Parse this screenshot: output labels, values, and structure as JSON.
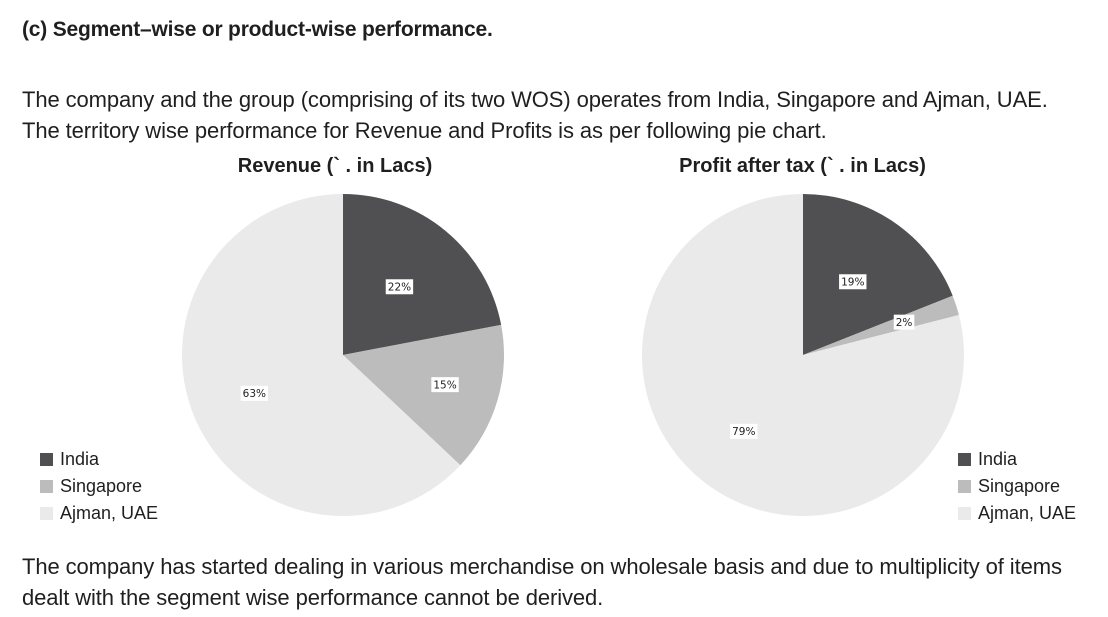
{
  "heading": "(c) Segment–wise or product-wise performance.",
  "intro": "The company and the group (comprising of its two WOS) operates from India, Singapore and Ajman, UAE. The territory wise performance for Revenue and Profits is as per following pie chart.",
  "closing": "The company has started dealing in various merchandise on wholesale basis and due to multiplicity of items dealt with the segment wise performance cannot be derived.",
  "colors": {
    "India": "#505052",
    "Singapore": "#bcbcbc",
    "Ajman, UAE": "#eaeaea"
  },
  "chart_data": [
    {
      "type": "pie",
      "title": "Revenue (` . in Lacs)",
      "categories": [
        "India",
        "Singapore",
        "Ajman, UAE"
      ],
      "values": [
        22,
        15,
        63
      ],
      "labels": [
        "22%",
        "15%",
        "63%"
      ],
      "legend": [
        "India",
        "Singapore",
        "Ajman, UAE"
      ],
      "legend_position": "bottom-left"
    },
    {
      "type": "pie",
      "title": "Profit after tax (` . in Lacs)",
      "categories": [
        "India",
        "Singapore",
        "Ajman, UAE"
      ],
      "values": [
        19,
        2,
        79
      ],
      "labels": [
        "19%",
        "2%",
        "79%"
      ],
      "legend": [
        "India",
        "Singapore",
        "Ajman, UAE"
      ],
      "legend_position": "bottom-right"
    }
  ]
}
